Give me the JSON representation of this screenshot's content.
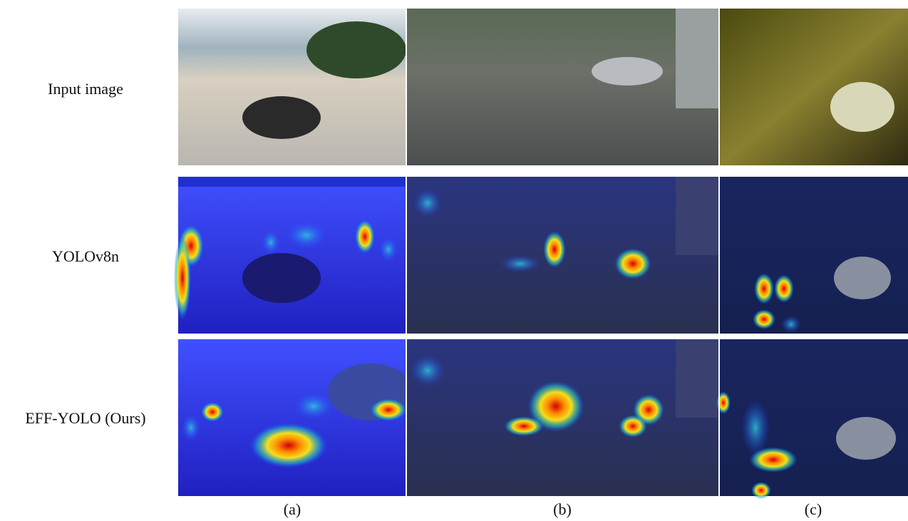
{
  "rows": [
    "Input image",
    "YOLOv8n",
    "EFF-YOLO (Ours)"
  ],
  "columns": [
    "(a)",
    "(b)",
    "(c)"
  ]
}
